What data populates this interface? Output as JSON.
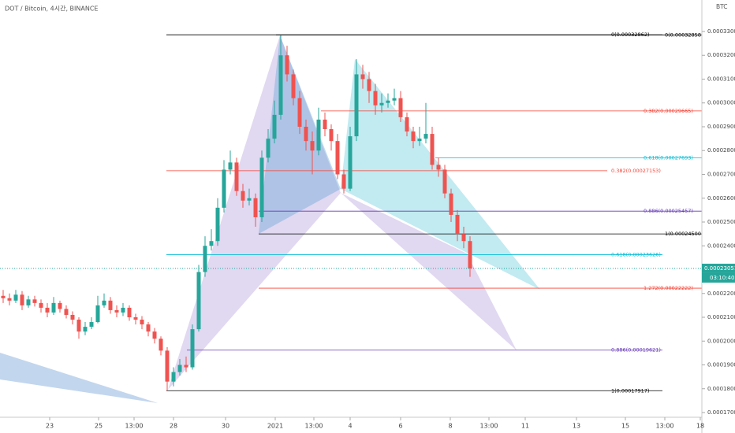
{
  "chart_data": {
    "type": "candlestick",
    "title": "DOT / Bitcoin, 4시간, BINANCE",
    "currency": "BTC",
    "up_color": "#26a69a",
    "down_color": "#ef5350",
    "open": [
      0.000219,
      0.000218,
      0.000217,
      0.0002195,
      0.000215,
      0.0002175,
      0.000216,
      0.000214,
      0.000212,
      0.000216,
      0.0002135,
      0.000211,
      0.000209,
      0.000204,
      0.000206,
      0.000208,
      0.000215,
      0.000217,
      0.000213,
      0.000212,
      0.000214,
      0.00021,
      0.000209,
      0.000207,
      0.000204,
      0.000201,
      0.000196,
      0.000183,
      0.000187,
      0.00019,
      0.000189,
      0.000205,
      0.000229,
      0.00024,
      0.000242,
      0.000256,
      0.000272,
      0.000275,
      0.000263,
      0.000259,
      0.00026,
      0.000252,
      0.000277,
      0.000285,
      0.000295,
      0.00032,
      0.000312,
      0.000302,
      0.00029,
      0.000284,
      0.00028,
      0.000293,
      0.000289,
      0.000284,
      0.00027,
      0.000264,
      0.000286,
      0.000312,
      0.00031,
      0.000305,
      0.000299,
      0.0003,
      0.000301,
      0.000302,
      0.000294,
      0.000288,
      0.000284,
      0.000285,
      0.000287,
      0.000274,
      0.000272,
      0.000262,
      0.000253,
      0.000245,
      0.000242
    ],
    "high": [
      0.0002215,
      0.00022,
      0.0002215,
      0.000221,
      0.000219,
      0.000219,
      0.0002175,
      0.000216,
      0.0002185,
      0.000217,
      0.000215,
      0.0002125,
      0.00021,
      0.000208,
      0.00021,
      0.000219,
      0.00022,
      0.0002185,
      0.000215,
      0.000216,
      0.000215,
      0.0002115,
      0.0002105,
      0.000208,
      0.0002055,
      0.000202,
      0.0001975,
      0.000189,
      0.0001925,
      0.0001935,
      0.000207,
      0.000232,
      0.000244,
      0.000247,
      0.00026,
      0.000276,
      0.00028,
      0.000277,
      0.000266,
      0.000264,
      0.000262,
      0.00028,
      0.000289,
      0.000301,
      0.0003284,
      0.000324,
      0.000314,
      0.000305,
      0.000293,
      0.000288,
      0.000298,
      0.000296,
      0.000291,
      0.000287,
      0.000272,
      0.00029,
      0.0003184,
      0.000316,
      0.000313,
      0.000308,
      0.000304,
      0.000304,
      0.000306,
      0.000305,
      0.000296,
      0.00029,
      0.00029,
      0.0003,
      0.00029,
      0.000277,
      0.000274,
      0.000264,
      0.000255,
      0.000248,
      0.000244
    ],
    "low": [
      0.000216,
      0.000215,
      0.000216,
      0.000213,
      0.000214,
      0.0002145,
      0.000212,
      0.00021,
      0.000211,
      0.000212,
      0.0002095,
      0.000207,
      0.000201,
      0.0002025,
      0.000205,
      0.0002075,
      0.000214,
      0.0002115,
      0.00021,
      0.0002105,
      0.0002085,
      0.000207,
      0.000205,
      0.000202,
      0.000199,
      0.000194,
      0.0001792,
      0.000181,
      0.0001855,
      0.000187,
      0.000188,
      0.000204,
      0.000227,
      0.000238,
      0.00024,
      0.000254,
      0.00027,
      0.000261,
      0.000256,
      0.000257,
      0.000248,
      0.00025,
      0.000275,
      0.000283,
      0.000293,
      0.000309,
      0.000299,
      0.000287,
      0.00028,
      0.00027,
      0.000278,
      0.000286,
      0.00028,
      0.000268,
      0.000262,
      0.000263,
      0.000284,
      0.000306,
      0.0003,
      0.000295,
      0.000296,
      0.000298,
      0.000299,
      0.000292,
      0.000286,
      0.000281,
      0.000282,
      0.000283,
      0.000272,
      0.000269,
      0.00026,
      0.00025,
      0.000242,
      0.000239,
      0.000227
    ],
    "close": [
      0.000218,
      0.000217,
      0.0002195,
      0.000215,
      0.0002175,
      0.000216,
      0.000214,
      0.000212,
      0.000216,
      0.0002135,
      0.000211,
      0.000209,
      0.000204,
      0.000206,
      0.000208,
      0.000215,
      0.000217,
      0.000213,
      0.000212,
      0.000214,
      0.00021,
      0.000209,
      0.000207,
      0.000204,
      0.000201,
      0.000196,
      0.000183,
      0.000187,
      0.00019,
      0.000189,
      0.000205,
      0.000229,
      0.00024,
      0.000242,
      0.000256,
      0.000272,
      0.000275,
      0.000263,
      0.000259,
      0.00026,
      0.000252,
      0.000277,
      0.000285,
      0.000295,
      0.00032,
      0.000312,
      0.000302,
      0.00029,
      0.000284,
      0.00028,
      0.000293,
      0.000289,
      0.000284,
      0.00027,
      0.000264,
      0.000286,
      0.000312,
      0.00031,
      0.000305,
      0.000299,
      0.0003,
      0.000301,
      0.000302,
      0.000294,
      0.000288,
      0.000284,
      0.000285,
      0.000287,
      0.000274,
      0.000272,
      0.000262,
      0.000253,
      0.000245,
      0.000242,
      0.0002305
    ],
    "ylim": [
      0.00016802,
      0.00034322
    ],
    "yticks": [
      {
        "value": 0.00017,
        "label": "0.00017000"
      },
      {
        "value": 0.00018,
        "label": "0.00018000"
      },
      {
        "value": 0.00019,
        "label": "0.00019000"
      },
      {
        "value": 0.0002,
        "label": "0.00020000"
      },
      {
        "value": 0.00021,
        "label": "0.00021000"
      },
      {
        "value": 0.00022,
        "label": "0.00022000"
      },
      {
        "value": 0.00023,
        "label": "0.00023000"
      },
      {
        "value": 0.00024,
        "label": "0.00024000"
      },
      {
        "value": 0.00025,
        "label": "0.00025000"
      },
      {
        "value": 0.00026,
        "label": "0.00026000"
      },
      {
        "value": 0.00027,
        "label": "0.00027000"
      },
      {
        "value": 0.00028,
        "label": "0.00028000"
      },
      {
        "value": 0.00029,
        "label": "0.00029000"
      },
      {
        "value": 0.0003,
        "label": "0.00030000"
      },
      {
        "value": 0.00031,
        "label": "0.00031000"
      },
      {
        "value": 0.00032,
        "label": "0.00032000"
      },
      {
        "value": 0.00033,
        "label": "0.00033000"
      }
    ],
    "xlim": [
      -0.5,
      110.75
    ],
    "xticks": [
      {
        "value": 7.375,
        "label": "23"
      },
      {
        "value": 15.125,
        "label": "25"
      },
      {
        "value": 20.75,
        "label": "13:00"
      },
      {
        "value": 27,
        "label": "28"
      },
      {
        "value": 35.25,
        "label": "30"
      },
      {
        "value": 43.125,
        "label": "2021"
      },
      {
        "value": 49.25,
        "label": "13:00"
      },
      {
        "value": 55,
        "label": "4"
      },
      {
        "value": 63,
        "label": "6"
      },
      {
        "value": 70.875,
        "label": "8"
      },
      {
        "value": 77,
        "label": "13:00"
      },
      {
        "value": 82.75,
        "label": "11"
      },
      {
        "value": 90.875,
        "label": "13"
      },
      {
        "value": 98.625,
        "label": "15"
      },
      {
        "value": 104.875,
        "label": "13:00"
      },
      {
        "value": 110.5,
        "label": "18"
      }
    ],
    "levels": [
      {
        "label": "0(0.00032862)",
        "value": 0.00032862,
        "color": "#000000"
      },
      {
        "label": "0(0.00032858)",
        "value": 0.00032858,
        "color": "#000000"
      },
      {
        "label": "0.382(0.00029665)",
        "value": 0.00029665,
        "color": "#f44336"
      },
      {
        "label": "0.618(0.00027693)",
        "value": 0.00027693,
        "color": "#00bcd4"
      },
      {
        "label": "0.382(0.00027153)",
        "value": 0.00027153,
        "color": "#f44336"
      },
      {
        "label": "0.886(0.00025457)",
        "value": 0.00025457,
        "color": "#673ab7"
      },
      {
        "label": "1(0.00024500)",
        "value": 0.000245,
        "color": "#000000"
      },
      {
        "label": "0.618(0.00023626)",
        "value": 0.00023626,
        "color": "#00bcd4"
      },
      {
        "label": "1.272(0.00022222)",
        "value": 0.00022222,
        "color": "#f44336"
      },
      {
        "label": "0.886(0.00019621)",
        "value": 0.00019621,
        "color": "#673ab7"
      },
      {
        "label": "1(0.00017917)",
        "value": 0.00017917,
        "color": "#000000"
      }
    ],
    "last_price": {
      "value": 0.00023051,
      "label": "0.00023051"
    },
    "countdown": "03:10:40"
  }
}
